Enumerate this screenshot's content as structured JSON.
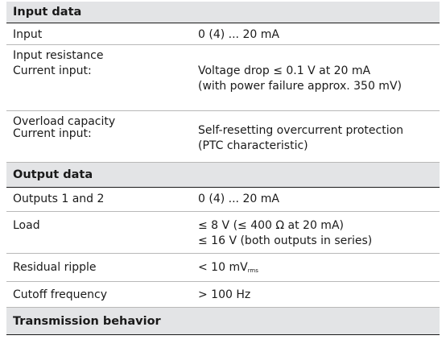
{
  "sections": {
    "input_data": "Input data",
    "output_data": "Output data",
    "transmission": "Transmission behavior"
  },
  "rows": {
    "input": {
      "label": "Input",
      "value": "0 (4) ... 20 mA"
    },
    "input_resistance": {
      "label": "Input resistance",
      "sublabel": "Current input:",
      "value1": "Voltage drop ≤ 0.1 V at 20 mA",
      "value2": "(with power failure approx. 350 mV)"
    },
    "overload": {
      "label": "Overload capacity",
      "sublabel": "Current input:",
      "value1": "Self-resetting overcurrent protection",
      "value2": "(PTC characteristic)"
    },
    "outputs": {
      "label": "Outputs 1 and 2",
      "value": "0 (4) ... 20 mA"
    },
    "load": {
      "label": "Load",
      "value1": "≤ 8 V (≤ 400 Ω at 20 mA)",
      "value2": "≤ 16 V (both outputs in series)"
    },
    "ripple": {
      "label": "Residual ripple",
      "value": "< 10 mV",
      "sub": "rms"
    },
    "cutoff": {
      "label": "Cutoff frequency",
      "value": "> 100 Hz"
    }
  }
}
